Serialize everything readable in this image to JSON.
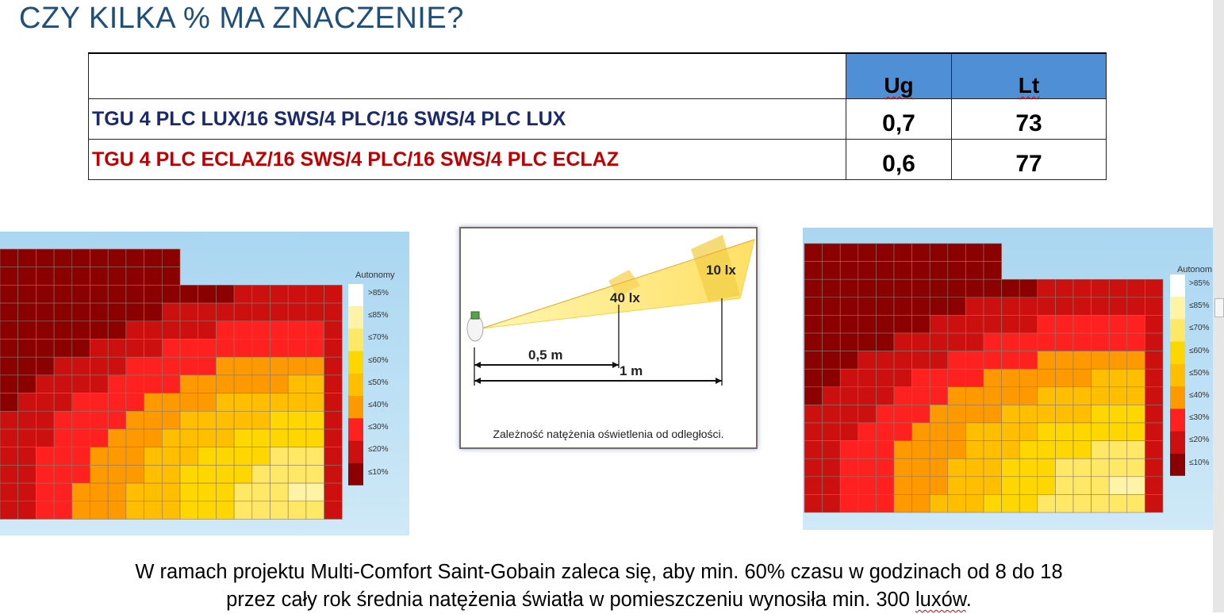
{
  "slide": {
    "title": "CZY KILKA % MA ZNACZENIE?"
  },
  "table": {
    "headers": [
      "Ug",
      "Lt"
    ],
    "rows": [
      {
        "name": "TGU 4 PLC LUX/16 SWS/4 PLC/16 SWS/4 PLC LUX",
        "ug": "0,7",
        "lt": "73",
        "color": "#1a2a6c"
      },
      {
        "name": "TGU 4 PLC ECLAZ/16 SWS/4 PLC/16 SWS/4 PLC ECLAZ",
        "ug": "0,6",
        "lt": "77",
        "color": "#c00000"
      }
    ],
    "header_color": "#4f8fd6"
  },
  "autonomy_legend": {
    "title": "Autonomy",
    "labels": [
      ">85%",
      "≤85%",
      "≤70%",
      "≤60%",
      "≤50%",
      "≤40%",
      "≤30%",
      "≤20%",
      "≤10%"
    ],
    "colors": [
      "#ffffff",
      "#fff3a6",
      "#ffe866",
      "#ffd700",
      "#ffbf00",
      "#ff9900",
      "#ff2020",
      "#cc1010",
      "#8b0000"
    ]
  },
  "right_legend_title": "Autonom",
  "diagram": {
    "label_near": "40 lx",
    "label_far": "10 lx",
    "dist_near": "0,5 m",
    "dist_far": "1 m",
    "caption": "Zależność natężenia oświetlenia od odległości."
  },
  "footnote": {
    "line1": "W ramach projektu Multi-Comfort Saint-Gobain zaleca się, aby min. 60% czasu  w godzinach od 8 do 18",
    "line2_pre": "przez cały rok średnia natężenia światła w pomieszczeniu wynosiła min. 300 ",
    "line2_word": "luxów",
    "line2_post": "."
  }
}
